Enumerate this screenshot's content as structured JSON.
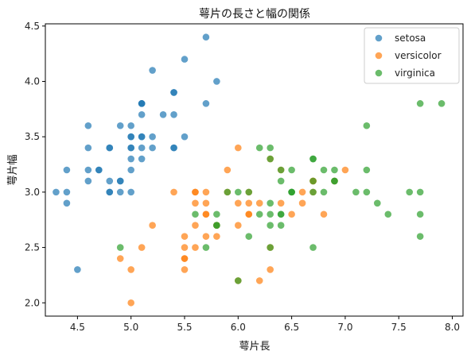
{
  "chart_data": {
    "type": "scatter",
    "title": "萼片の長さと幅の関係",
    "xlabel": "萼片長",
    "ylabel": "萼片幅",
    "xlim": [
      4.2,
      8.1
    ],
    "ylim": [
      1.88,
      4.52
    ],
    "xticks": [
      4.5,
      5.0,
      5.5,
      6.0,
      6.5,
      7.0,
      7.5,
      8.0
    ],
    "xtick_labels": [
      "4.5",
      "5.0",
      "5.5",
      "6.0",
      "6.5",
      "7.0",
      "7.5",
      "8.0"
    ],
    "yticks": [
      2.0,
      2.5,
      3.0,
      3.5,
      4.0,
      4.5
    ],
    "ytick_labels": [
      "2.0",
      "2.5",
      "3.0",
      "3.5",
      "4.0",
      "4.5"
    ],
    "grid": false,
    "legend_position": "top-right",
    "series": [
      {
        "name": "setosa",
        "color": "#1f77b4",
        "points": [
          [
            5.1,
            3.5
          ],
          [
            4.9,
            3.0
          ],
          [
            4.7,
            3.2
          ],
          [
            4.6,
            3.1
          ],
          [
            5.0,
            3.6
          ],
          [
            5.4,
            3.9
          ],
          [
            4.6,
            3.4
          ],
          [
            5.0,
            3.4
          ],
          [
            4.4,
            2.9
          ],
          [
            4.9,
            3.1
          ],
          [
            5.4,
            3.7
          ],
          [
            4.8,
            3.4
          ],
          [
            4.8,
            3.0
          ],
          [
            4.3,
            3.0
          ],
          [
            5.8,
            4.0
          ],
          [
            5.7,
            4.4
          ],
          [
            5.4,
            3.9
          ],
          [
            5.1,
            3.5
          ],
          [
            5.7,
            3.8
          ],
          [
            5.1,
            3.8
          ],
          [
            5.4,
            3.4
          ],
          [
            5.1,
            3.7
          ],
          [
            4.6,
            3.6
          ],
          [
            5.1,
            3.3
          ],
          [
            4.8,
            3.4
          ],
          [
            5.0,
            3.0
          ],
          [
            5.0,
            3.4
          ],
          [
            5.2,
            3.5
          ],
          [
            5.2,
            3.4
          ],
          [
            4.7,
            3.2
          ],
          [
            4.8,
            3.1
          ],
          [
            5.4,
            3.4
          ],
          [
            5.2,
            4.1
          ],
          [
            5.5,
            4.2
          ],
          [
            4.9,
            3.1
          ],
          [
            5.0,
            3.2
          ],
          [
            5.5,
            3.5
          ],
          [
            4.9,
            3.6
          ],
          [
            4.4,
            3.0
          ],
          [
            5.1,
            3.4
          ],
          [
            5.0,
            3.5
          ],
          [
            4.5,
            2.3
          ],
          [
            4.4,
            3.2
          ],
          [
            5.0,
            3.5
          ],
          [
            5.1,
            3.8
          ],
          [
            4.8,
            3.0
          ],
          [
            5.1,
            3.8
          ],
          [
            4.6,
            3.2
          ],
          [
            5.3,
            3.7
          ],
          [
            5.0,
            3.3
          ]
        ]
      },
      {
        "name": "versicolor",
        "color": "#ff7f0e",
        "points": [
          [
            7.0,
            3.2
          ],
          [
            6.4,
            3.2
          ],
          [
            6.9,
            3.1
          ],
          [
            5.5,
            2.3
          ],
          [
            6.5,
            2.8
          ],
          [
            5.7,
            2.8
          ],
          [
            6.3,
            3.3
          ],
          [
            4.9,
            2.4
          ],
          [
            6.6,
            2.9
          ],
          [
            5.2,
            2.7
          ],
          [
            5.0,
            2.0
          ],
          [
            5.9,
            3.0
          ],
          [
            6.0,
            2.2
          ],
          [
            6.1,
            2.9
          ],
          [
            5.6,
            2.9
          ],
          [
            6.7,
            3.1
          ],
          [
            5.6,
            3.0
          ],
          [
            5.8,
            2.7
          ],
          [
            6.2,
            2.2
          ],
          [
            5.6,
            2.5
          ],
          [
            5.9,
            3.2
          ],
          [
            6.1,
            2.8
          ],
          [
            6.3,
            2.5
          ],
          [
            6.1,
            2.8
          ],
          [
            6.4,
            2.9
          ],
          [
            6.6,
            3.0
          ],
          [
            6.8,
            2.8
          ],
          [
            6.7,
            3.0
          ],
          [
            6.0,
            2.9
          ],
          [
            5.7,
            2.6
          ],
          [
            5.5,
            2.4
          ],
          [
            5.5,
            2.4
          ],
          [
            5.8,
            2.7
          ],
          [
            6.0,
            2.7
          ],
          [
            5.4,
            3.0
          ],
          [
            6.0,
            3.4
          ],
          [
            6.7,
            3.1
          ],
          [
            6.3,
            2.3
          ],
          [
            5.6,
            3.0
          ],
          [
            5.5,
            2.5
          ],
          [
            5.5,
            2.6
          ],
          [
            6.1,
            3.0
          ],
          [
            5.8,
            2.6
          ],
          [
            5.0,
            2.3
          ],
          [
            5.6,
            2.7
          ],
          [
            5.7,
            3.0
          ],
          [
            5.7,
            2.9
          ],
          [
            6.2,
            2.9
          ],
          [
            5.1,
            2.5
          ],
          [
            5.7,
            2.8
          ]
        ]
      },
      {
        "name": "virginica",
        "color": "#2ca02c",
        "points": [
          [
            6.3,
            3.3
          ],
          [
            5.8,
            2.7
          ],
          [
            7.1,
            3.0
          ],
          [
            6.3,
            2.9
          ],
          [
            6.5,
            3.0
          ],
          [
            7.6,
            3.0
          ],
          [
            4.9,
            2.5
          ],
          [
            7.3,
            2.9
          ],
          [
            6.7,
            2.5
          ],
          [
            7.2,
            3.6
          ],
          [
            6.5,
            3.2
          ],
          [
            6.4,
            2.7
          ],
          [
            6.8,
            3.0
          ],
          [
            5.7,
            2.5
          ],
          [
            5.8,
            2.8
          ],
          [
            6.4,
            3.2
          ],
          [
            6.5,
            3.0
          ],
          [
            7.7,
            3.8
          ],
          [
            7.7,
            2.6
          ],
          [
            6.0,
            2.2
          ],
          [
            6.9,
            3.2
          ],
          [
            5.6,
            2.8
          ],
          [
            7.7,
            2.8
          ],
          [
            6.3,
            2.7
          ],
          [
            6.7,
            3.3
          ],
          [
            7.2,
            3.2
          ],
          [
            6.2,
            2.8
          ],
          [
            6.1,
            3.0
          ],
          [
            6.4,
            2.8
          ],
          [
            7.2,
            3.0
          ],
          [
            7.4,
            2.8
          ],
          [
            7.9,
            3.8
          ],
          [
            6.4,
            2.8
          ],
          [
            6.3,
            2.8
          ],
          [
            6.1,
            2.6
          ],
          [
            7.7,
            3.0
          ],
          [
            6.3,
            3.4
          ],
          [
            6.4,
            3.1
          ],
          [
            6.0,
            3.0
          ],
          [
            6.9,
            3.1
          ],
          [
            6.7,
            3.1
          ],
          [
            6.9,
            3.1
          ],
          [
            5.8,
            2.7
          ],
          [
            6.8,
            3.2
          ],
          [
            6.7,
            3.3
          ],
          [
            6.7,
            3.0
          ],
          [
            6.3,
            2.5
          ],
          [
            6.5,
            3.0
          ],
          [
            6.2,
            3.4
          ],
          [
            5.9,
            3.0
          ]
        ]
      }
    ]
  }
}
